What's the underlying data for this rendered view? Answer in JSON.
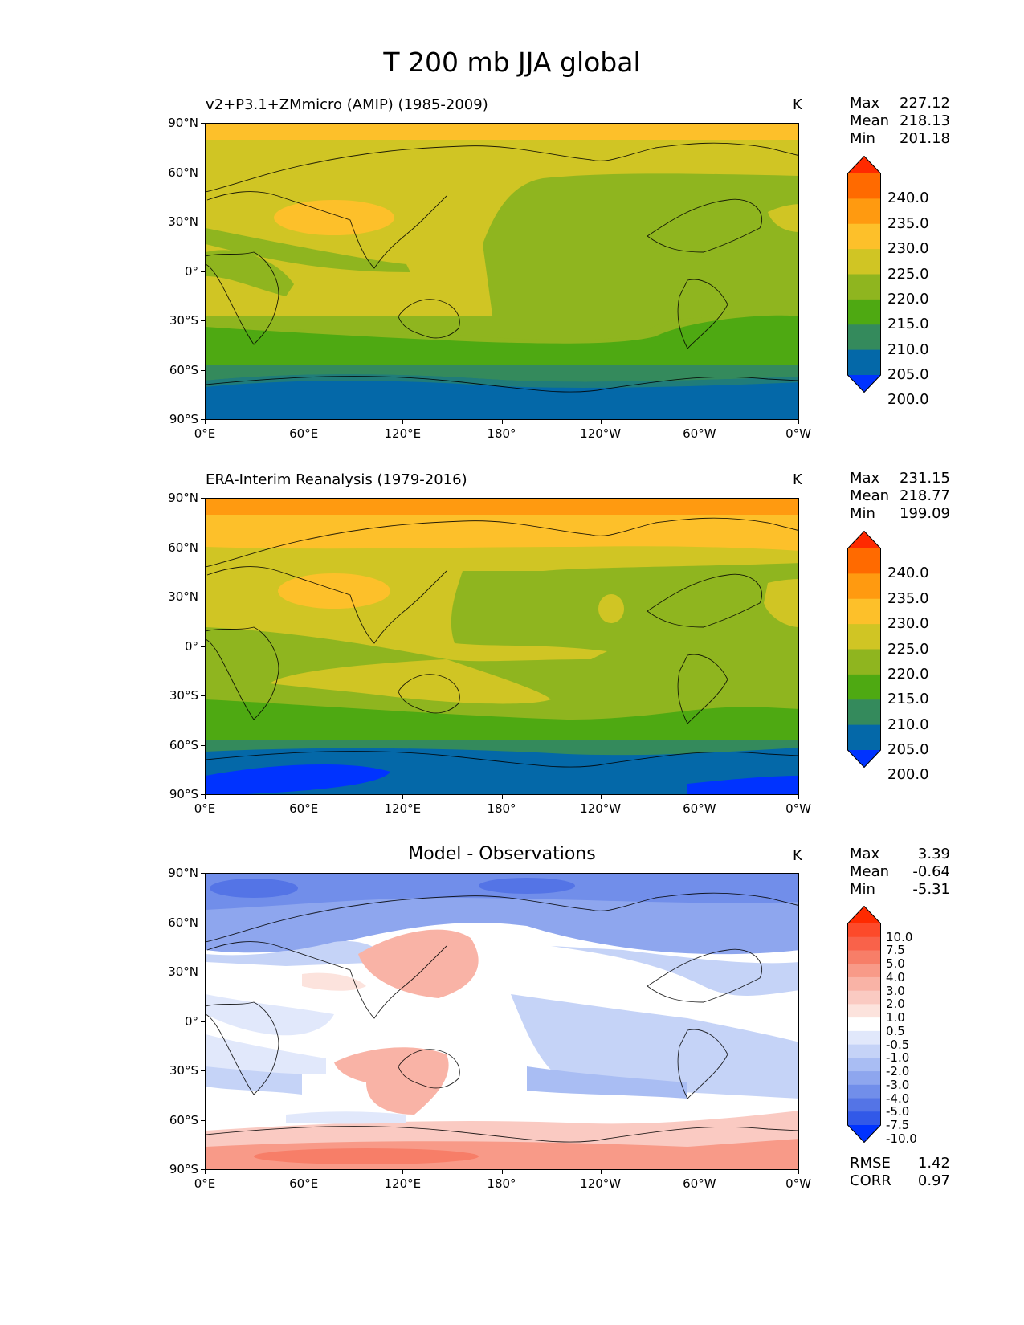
{
  "title": "T 200 mb JJA global",
  "lat_ticks": [
    "90°N",
    "60°N",
    "30°N",
    "0°",
    "30°S",
    "60°S",
    "90°S"
  ],
  "lon_ticks": [
    "0°E",
    "60°E",
    "120°E",
    "180°",
    "120°W",
    "60°W",
    "0°W"
  ],
  "panels": [
    {
      "title": "v2+P3.1+ZMmicro (AMIP) (1985-2009)",
      "units": "K",
      "stats": {
        "max_label": "Max",
        "max": "227.12",
        "mean_label": "Mean",
        "mean": "218.13",
        "min_label": "Min",
        "min": "201.18"
      },
      "colorbar": {
        "labels": [
          "240.0",
          "235.0",
          "230.0",
          "225.0",
          "220.0",
          "215.0",
          "210.0",
          "205.0",
          "200.0"
        ],
        "colors": [
          "#ff2a00",
          "#ff6a00",
          "#ff9a10",
          "#fdc02a",
          "#d0c524",
          "#8fb51f",
          "#4ea912",
          "#348a5c",
          "#0468a8",
          "#0033ff"
        ]
      }
    },
    {
      "title": "ERA-Interim Reanalysis (1979-2016)",
      "units": "K",
      "stats": {
        "max_label": "Max",
        "max": "231.15",
        "mean_label": "Mean",
        "mean": "218.77",
        "min_label": "Min",
        "min": "199.09"
      },
      "colorbar": {
        "labels": [
          "240.0",
          "235.0",
          "230.0",
          "225.0",
          "220.0",
          "215.0",
          "210.0",
          "205.0",
          "200.0"
        ],
        "colors": [
          "#ff2a00",
          "#ff6a00",
          "#ff9a10",
          "#fdc02a",
          "#d0c524",
          "#8fb51f",
          "#4ea912",
          "#348a5c",
          "#0468a8",
          "#0033ff"
        ]
      }
    },
    {
      "title": "Model - Observations",
      "units": "K",
      "stats": {
        "max_label": "Max",
        "max": "3.39",
        "mean_label": "Mean",
        "mean": "-0.64",
        "min_label": "Min",
        "min": "-5.31"
      },
      "colorbar": {
        "labels": [
          "10.0",
          "7.5",
          "5.0",
          "4.0",
          "3.0",
          "2.0",
          "1.0",
          "0.5",
          "-0.5",
          "-1.0",
          "-2.0",
          "-3.0",
          "-4.0",
          "-5.0",
          "-7.5",
          "-10.0"
        ],
        "colors": [
          "#ff2a00",
          "#fd4a2a",
          "#f9624a",
          "#f77e68",
          "#f89a88",
          "#f9b3a6",
          "#facac2",
          "#fce3dd",
          "#ffffff",
          "#e1e8fb",
          "#c5d3f7",
          "#a9bdf3",
          "#8ea6ee",
          "#718eea",
          "#5474e6",
          "#3259e8",
          "#0033ff"
        ]
      },
      "metrics": {
        "rmse_label": "RMSE",
        "rmse": "1.42",
        "corr_label": "CORR",
        "corr": "0.97"
      }
    }
  ],
  "chart_data": [
    {
      "type": "heatmap",
      "title": "v2+P3.1+ZMmicro (AMIP) (1985-2009)",
      "variable": "T 200 mb JJA",
      "units": "K",
      "x_range": [
        0,
        360
      ],
      "y_range": [
        -90,
        90
      ],
      "levels": [
        200,
        205,
        210,
        215,
        220,
        225,
        230,
        235,
        240
      ],
      "max": 227.12,
      "mean": 218.13,
      "min": 201.18
    },
    {
      "type": "heatmap",
      "title": "ERA-Interim Reanalysis (1979-2016)",
      "variable": "T 200 mb JJA",
      "units": "K",
      "x_range": [
        0,
        360
      ],
      "y_range": [
        -90,
        90
      ],
      "levels": [
        200,
        205,
        210,
        215,
        220,
        225,
        230,
        235,
        240
      ],
      "max": 231.15,
      "mean": 218.77,
      "min": 199.09
    },
    {
      "type": "heatmap",
      "title": "Model - Observations",
      "variable": "T 200 mb JJA difference",
      "units": "K",
      "x_range": [
        0,
        360
      ],
      "y_range": [
        -90,
        90
      ],
      "levels": [
        -10,
        -7.5,
        -5,
        -4,
        -3,
        -2,
        -1,
        -0.5,
        0.5,
        1,
        2,
        3,
        4,
        5,
        7.5,
        10
      ],
      "max": 3.39,
      "mean": -0.64,
      "min": -5.31,
      "rmse": 1.42,
      "corr": 0.97
    }
  ]
}
